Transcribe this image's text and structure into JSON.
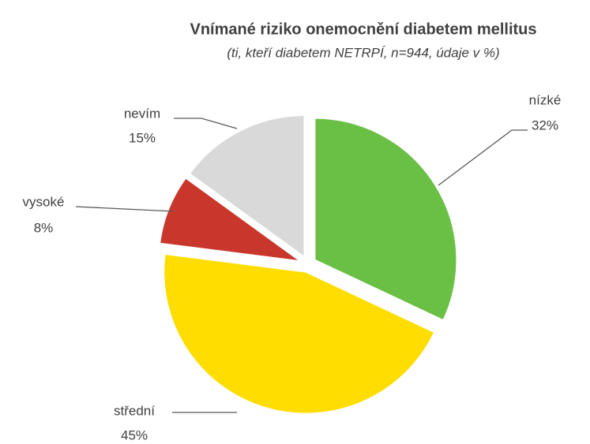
{
  "chart_data": {
    "type": "pie",
    "title": "Vnímané riziko onemocnění diabetem mellitus",
    "subtitle": "(ti, kteří diabetem NETRPÍ, n=944, údaje v %)",
    "categories": [
      "nízké",
      "střední",
      "vysoké",
      "nevím"
    ],
    "values": [
      32,
      45,
      8,
      15
    ],
    "value_labels": [
      "32%",
      "45%",
      "8%",
      "15%"
    ],
    "colors": [
      "#6abf45",
      "#ffdd00",
      "#c9372c",
      "#d9d9d9"
    ]
  }
}
